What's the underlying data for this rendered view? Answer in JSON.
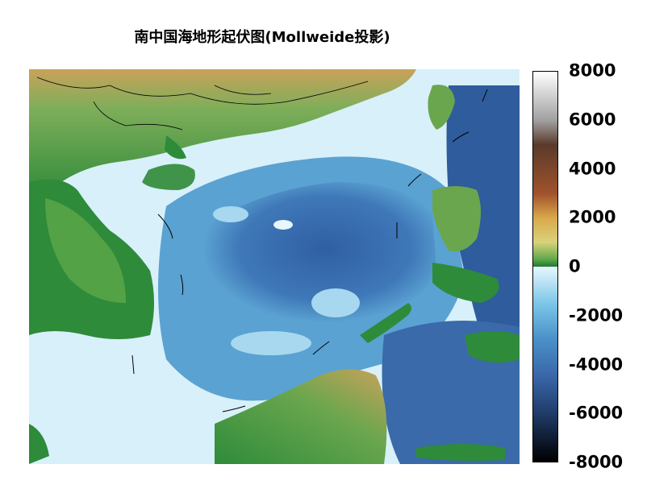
{
  "title": "南中国海地形起伏图(Mollweide投影)",
  "map": {
    "region": "South China Sea",
    "projection": "Mollweide",
    "colors": {
      "deep_ocean": "#2f5fa3",
      "mid_ocean": "#4a90c8",
      "shallow_ocean": "#b8e0f0",
      "coast_shelf": "#e6f5fb",
      "lowland": "#2e8b3a",
      "upland": "#d9c27a",
      "highland": "#8b4513",
      "boundary_lines": "#000000"
    }
  },
  "colorbar": {
    "min": -8000,
    "max": 8000,
    "ticks": [
      "8000",
      "6000",
      "4000",
      "2000",
      "0",
      "-2000",
      "-4000",
      "-6000",
      "-8000"
    ],
    "tick_values": [
      8000,
      6000,
      4000,
      2000,
      0,
      -2000,
      -4000,
      -6000,
      -8000
    ],
    "stops": [
      {
        "value": 8000,
        "color": "#ffffff"
      },
      {
        "value": 6000,
        "color": "#a0a0a0"
      },
      {
        "value": 5000,
        "color": "#5a3a2a"
      },
      {
        "value": 3000,
        "color": "#a0522d"
      },
      {
        "value": 2000,
        "color": "#d9a84a"
      },
      {
        "value": 1000,
        "color": "#d9d27a"
      },
      {
        "value": 300,
        "color": "#5ea84a"
      },
      {
        "value": 0,
        "color": "#1f7a2f"
      },
      {
        "value": -1,
        "color": "#e6f7fd"
      },
      {
        "value": -1500,
        "color": "#7cc6e8"
      },
      {
        "value": -3000,
        "color": "#4a8fc8"
      },
      {
        "value": -4500,
        "color": "#3a66a8"
      },
      {
        "value": -6000,
        "color": "#203c6a"
      },
      {
        "value": -8000,
        "color": "#000000"
      }
    ]
  }
}
